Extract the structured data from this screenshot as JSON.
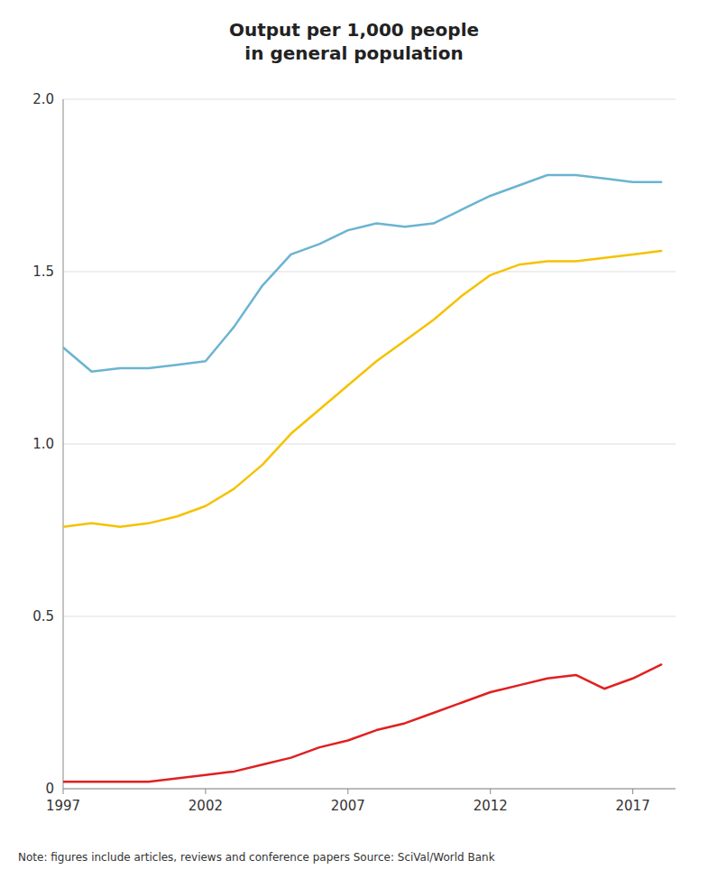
{
  "chart_data": {
    "type": "line",
    "title": "Output per 1,000 people\nin general population",
    "annotations": [
      "Note: figures include articles, reviews and conference papers   Source: SciVal/World Bank"
    ],
    "x": [
      1997,
      1998,
      1999,
      2000,
      2001,
      2002,
      2003,
      2004,
      2005,
      2006,
      2007,
      2008,
      2009,
      2010,
      2011,
      2012,
      2013,
      2014,
      2015,
      2016,
      2017,
      2018
    ],
    "series": [
      {
        "color": "#6ab4d2",
        "values": [
          1.28,
          1.21,
          1.22,
          1.22,
          1.23,
          1.24,
          1.34,
          1.46,
          1.55,
          1.58,
          1.62,
          1.64,
          1.63,
          1.64,
          1.68,
          1.72,
          1.75,
          1.78,
          1.78,
          1.77,
          1.76,
          1.76
        ]
      },
      {
        "color": "#f5c200",
        "values": [
          0.76,
          0.77,
          0.76,
          0.77,
          0.79,
          0.82,
          0.87,
          0.94,
          1.03,
          1.1,
          1.17,
          1.24,
          1.3,
          1.36,
          1.43,
          1.49,
          1.52,
          1.53,
          1.53,
          1.54,
          1.55,
          1.56
        ]
      },
      {
        "color": "#e02020",
        "values": [
          0.02,
          0.02,
          0.02,
          0.02,
          0.03,
          0.04,
          0.05,
          0.07,
          0.09,
          0.12,
          0.14,
          0.17,
          0.19,
          0.22,
          0.25,
          0.28,
          0.3,
          0.32,
          0.33,
          0.29,
          0.32,
          0.36
        ]
      }
    ],
    "xlim": [
      1997,
      2018.5
    ],
    "ylim": [
      0,
      2.0
    ],
    "xticks": [
      1997,
      2002,
      2007,
      2012,
      2017
    ],
    "yticks": [
      0,
      0.5,
      {
        "value": 1.0,
        "label": "1.0"
      },
      1.5,
      {
        "value": 2.0,
        "label": "2.0"
      }
    ],
    "grid": true
  }
}
